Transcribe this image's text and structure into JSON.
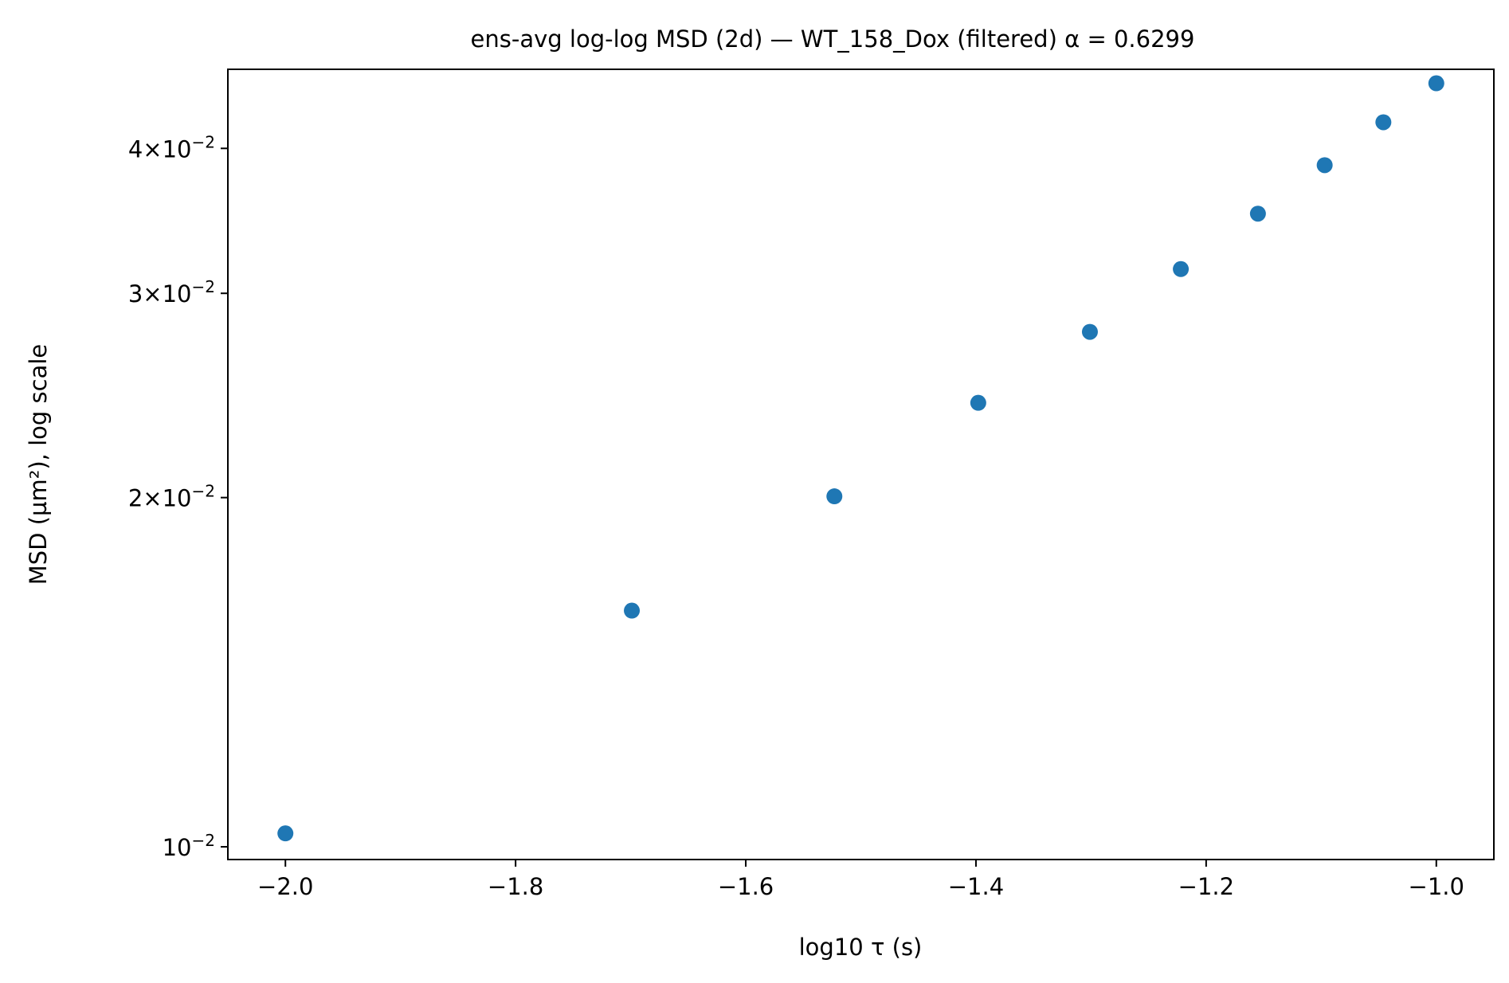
{
  "chart_data": {
    "type": "scatter",
    "title": "ens-avg log-log MSD (2d) — WT_158_Dox (filtered) α = 0.6299",
    "xlabel": "log10 τ (s)",
    "ylabel": "MSD (µm²), log scale",
    "y_scale": "log",
    "grid": false,
    "legend": "none",
    "xlim": [
      -2.05,
      -0.95
    ],
    "ylim": [
      0.00975,
      0.0468
    ],
    "x_ticks": [
      -2.0,
      -1.8,
      -1.6,
      -1.4,
      -1.2,
      -1.0
    ],
    "x_tick_labels": [
      "−2.0",
      "−1.8",
      "−1.6",
      "−1.4",
      "−1.2",
      "−1.0"
    ],
    "y_ticks": [
      {
        "value": 0.01,
        "mantissa": "",
        "exponent": "−2"
      },
      {
        "value": 0.02,
        "mantissa": "2",
        "exponent": "−2"
      },
      {
        "value": 0.03,
        "mantissa": "3",
        "exponent": "−2"
      },
      {
        "value": 0.04,
        "mantissa": "4",
        "exponent": "−2"
      }
    ],
    "marker_color": "#1f77b4",
    "series": [
      {
        "x": [
          -2.0,
          -1.699,
          -1.523,
          -1.398,
          -1.301,
          -1.222,
          -1.155,
          -1.097,
          -1.046,
          -1.0
        ],
        "y": [
          0.01027,
          0.01598,
          0.02005,
          0.02414,
          0.02779,
          0.03148,
          0.03514,
          0.03869,
          0.04213,
          0.04552
        ]
      }
    ]
  }
}
